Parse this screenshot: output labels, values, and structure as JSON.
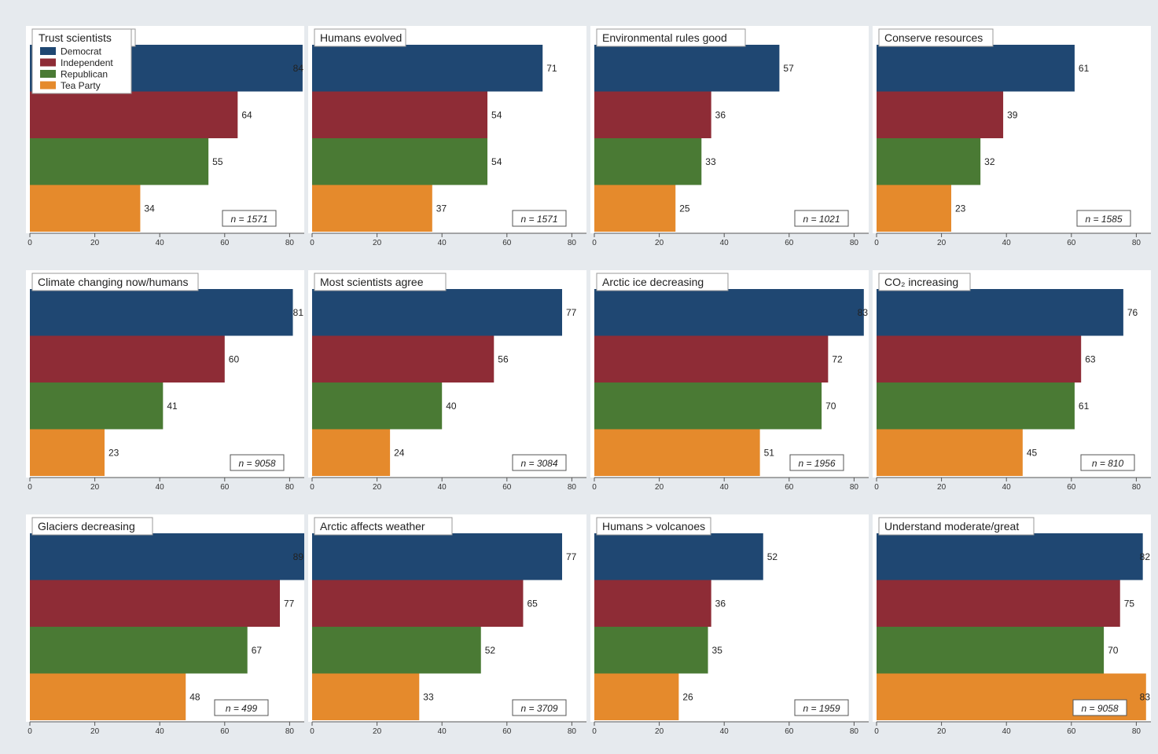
{
  "colors": {
    "democrat": "#1f4772",
    "independent": "#8e2c36",
    "republican": "#4a7a34",
    "tea_party": "#e58a2c"
  },
  "legend": {
    "title": "Trust scientists",
    "entries": [
      "Democrat",
      "Independent",
      "Republican",
      "Tea Party"
    ]
  },
  "chart_data": [
    {
      "type": "bar",
      "orientation": "horizontal",
      "title": "Trust scientists",
      "categories": [
        "Democrat",
        "Independent",
        "Republican",
        "Tea Party"
      ],
      "values": [
        84,
        64,
        55,
        34
      ],
      "value_labels": [
        "84",
        "64",
        "55",
        "34"
      ],
      "n_label": "n = 1571",
      "xlim": [
        0,
        90
      ],
      "xticks": [
        0,
        20,
        40,
        60,
        80
      ],
      "grid": false,
      "legend": "top-left"
    },
    {
      "type": "bar",
      "orientation": "horizontal",
      "title": "Humans evolved",
      "categories": [
        "Democrat",
        "Independent",
        "Republican",
        "Tea Party"
      ],
      "values": [
        71,
        54,
        54,
        37
      ],
      "value_labels": [
        "71",
        "54",
        "54",
        "37"
      ],
      "n_label": "n = 1571",
      "xlim": [
        0,
        80
      ],
      "xticks": [
        0,
        20,
        40,
        60,
        80
      ],
      "grid": false
    },
    {
      "type": "bar",
      "orientation": "horizontal",
      "title": "Environmental rules good",
      "categories": [
        "Democrat",
        "Independent",
        "Republican",
        "Tea Party"
      ],
      "values": [
        57,
        36,
        33,
        25
      ],
      "value_labels": [
        "57",
        "36",
        "33",
        "25"
      ],
      "n_label": "n = 1021",
      "xlim": [
        0,
        80
      ],
      "xticks": [
        0,
        20,
        40,
        60,
        80
      ],
      "grid": false
    },
    {
      "type": "bar",
      "orientation": "horizontal",
      "title": "Conserve resources",
      "categories": [
        "Democrat",
        "Independent",
        "Republican",
        "Tea Party"
      ],
      "values": [
        61,
        39,
        32,
        23
      ],
      "value_labels": [
        "61",
        "39",
        "32",
        "23"
      ],
      "n_label": "n = 1585",
      "xlim": [
        0,
        80
      ],
      "xticks": [
        0,
        20,
        40,
        60,
        80
      ],
      "grid": false
    },
    {
      "type": "bar",
      "orientation": "horizontal",
      "title": "Climate changing now/humans",
      "categories": [
        "Democrat",
        "Independent",
        "Republican",
        "Tea Party"
      ],
      "values": [
        81,
        60,
        41,
        23
      ],
      "value_labels": [
        "81",
        "60",
        "41",
        "23"
      ],
      "n_label": "n = 9058",
      "xlim": [
        0,
        81
      ],
      "xticks": [
        0,
        20,
        40,
        60,
        80
      ],
      "grid": false
    },
    {
      "type": "bar",
      "orientation": "horizontal",
      "title": "Most scientists agree",
      "categories": [
        "Democrat",
        "Independent",
        "Republican",
        "Tea Party"
      ],
      "values": [
        77,
        56,
        40,
        24
      ],
      "value_labels": [
        "77",
        "56",
        "40",
        "24"
      ],
      "n_label": "n = 3084",
      "xlim": [
        0,
        80
      ],
      "xticks": [
        0,
        20,
        40,
        60,
        80
      ],
      "grid": false
    },
    {
      "type": "bar",
      "orientation": "horizontal",
      "title": "Arctic ice decreasing",
      "categories": [
        "Democrat",
        "Independent",
        "Republican",
        "Tea Party"
      ],
      "values": [
        83,
        72,
        70,
        51
      ],
      "value_labels": [
        "83",
        "72",
        "70",
        "51"
      ],
      "n_label": "n = 1956",
      "xlim": [
        0,
        83
      ],
      "xticks": [
        0,
        20,
        40,
        60,
        80
      ],
      "grid": false
    },
    {
      "type": "bar",
      "orientation": "horizontal",
      "title": "CO₂ increasing",
      "categories": [
        "Democrat",
        "Independent",
        "Republican",
        "Tea Party"
      ],
      "values": [
        76,
        63,
        61,
        45
      ],
      "value_labels": [
        "76",
        "63",
        "61",
        "45"
      ],
      "n_label": "n = 810",
      "xlim": [
        0,
        80
      ],
      "xticks": [
        0,
        20,
        40,
        60,
        80
      ],
      "grid": false
    },
    {
      "type": "bar",
      "orientation": "horizontal",
      "title": "Glaciers decreasing",
      "categories": [
        "Democrat",
        "Independent",
        "Republican",
        "Tea Party"
      ],
      "values": [
        89,
        77,
        67,
        48
      ],
      "value_labels": [
        "89",
        "77",
        "67",
        "48"
      ],
      "n_label": "n = 499",
      "xlim": [
        0,
        89
      ],
      "xticks": [
        0,
        20,
        40,
        60,
        80
      ],
      "grid": false
    },
    {
      "type": "bar",
      "orientation": "horizontal",
      "title": "Arctic affects weather",
      "categories": [
        "Democrat",
        "Independent",
        "Republican",
        "Tea Party"
      ],
      "values": [
        77,
        65,
        52,
        33
      ],
      "value_labels": [
        "77",
        "65",
        "52",
        "33"
      ],
      "n_label": "n = 3709",
      "xlim": [
        0,
        80
      ],
      "xticks": [
        0,
        20,
        40,
        60,
        80
      ],
      "grid": false
    },
    {
      "type": "bar",
      "orientation": "horizontal",
      "title": "Humans > volcanoes",
      "categories": [
        "Democrat",
        "Independent",
        "Republican",
        "Tea Party"
      ],
      "values": [
        52,
        36,
        35,
        26
      ],
      "value_labels": [
        "52",
        "36",
        "35",
        "26"
      ],
      "n_label": "n = 1959",
      "xlim": [
        0,
        80
      ],
      "xticks": [
        0,
        20,
        40,
        60,
        80
      ],
      "grid": false
    },
    {
      "type": "bar",
      "orientation": "horizontal",
      "title": "Understand moderate/great",
      "categories": [
        "Democrat",
        "Independent",
        "Republican",
        "Tea Party"
      ],
      "values": [
        82,
        75,
        70,
        83
      ],
      "value_labels": [
        "82",
        "75",
        "70",
        "83"
      ],
      "n_label": "n = 9058",
      "xlim": [
        0,
        83
      ],
      "xticks": [
        0,
        20,
        40,
        60,
        80
      ],
      "grid": false
    }
  ]
}
